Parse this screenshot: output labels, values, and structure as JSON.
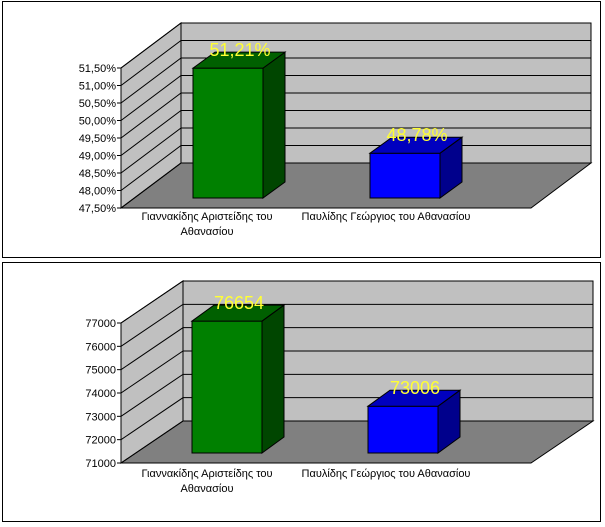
{
  "chart_data": [
    {
      "type": "bar",
      "categories": [
        "Γιαννακίδης Αριστείδης του Αθανασίου",
        "Παυλίδης Γεώργιος του Αθανασίου"
      ],
      "category_lines": [
        [
          "Γιαννακίδης Αριστείδης του",
          "Αθανασίου"
        ],
        [
          "Παυλίδης Γεώργιος του Αθανασίου"
        ]
      ],
      "values": [
        51.21,
        48.78
      ],
      "value_labels": [
        "51,21%",
        "48,78%"
      ],
      "ylim": [
        47.5,
        51.5
      ],
      "ticks": [
        47.5,
        48.0,
        48.5,
        49.0,
        49.5,
        50.0,
        50.5,
        51.0,
        51.5
      ],
      "tick_labels": [
        "47,50%",
        "48,00%",
        "48,50%",
        "49,00%",
        "49,50%",
        "50,00%",
        "50,50%",
        "51,00%",
        "51,50%"
      ],
      "colors": [
        "#008000",
        "#0000ff"
      ],
      "grid": true,
      "style": "3d"
    },
    {
      "type": "bar",
      "categories": [
        "Γιαννακίδης Αριστείδης του Αθανασίου",
        "Παυλίδης Γεώργιος του Αθανασίου"
      ],
      "category_lines": [
        [
          "Γιαννακίδης Αριστείδης του",
          "Αθανασίου"
        ],
        [
          "Παυλίδης Γεώργιος του Αθανασίου"
        ]
      ],
      "values": [
        76654,
        73006
      ],
      "value_labels": [
        "76654",
        "73006"
      ],
      "ylim": [
        71000,
        77000
      ],
      "ticks": [
        71000,
        72000,
        73000,
        74000,
        75000,
        76000,
        77000
      ],
      "tick_labels": [
        "71000",
        "72000",
        "73000",
        "74000",
        "75000",
        "76000",
        "77000"
      ],
      "colors": [
        "#008000",
        "#0000ff"
      ],
      "grid": true,
      "style": "3d"
    }
  ]
}
